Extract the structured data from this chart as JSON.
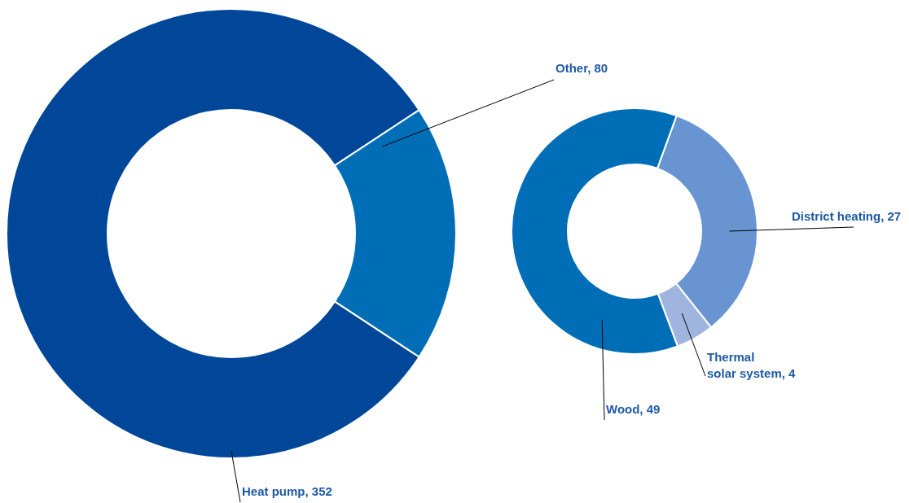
{
  "chart_data": [
    {
      "type": "donut",
      "categories": [
        "Heat pump, 352",
        "Other, 80"
      ],
      "values": [
        352,
        80
      ],
      "colors": [
        "#00479a",
        "#006eb6"
      ],
      "legend": false
    },
    {
      "type": "donut",
      "categories": [
        "District heating, 27",
        "Thermal solar system, 4",
        "Wood, 49"
      ],
      "values": [
        27,
        4,
        49
      ],
      "colors": [
        "#6895d1",
        "#a0b4e0",
        "#006eb6"
      ],
      "legend": false
    }
  ]
}
